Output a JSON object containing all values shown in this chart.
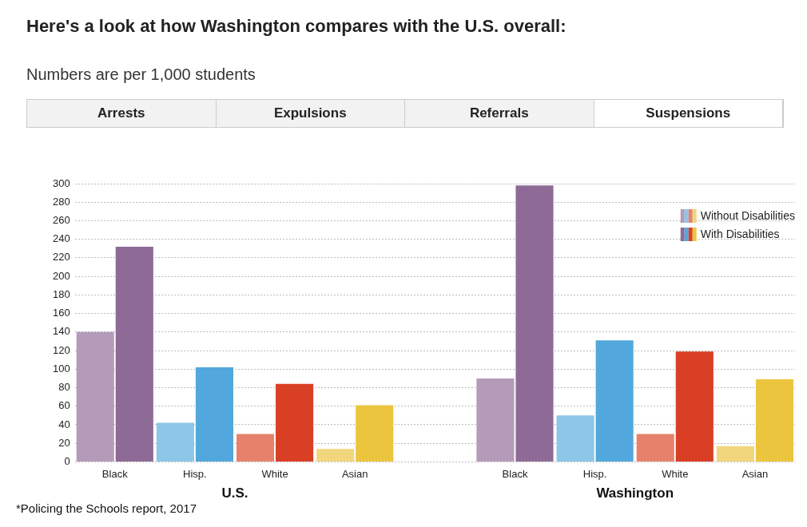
{
  "chart_data": {
    "type": "bar",
    "title": "Here's a look at how Washington compares with the U.S. overall:",
    "subtitle": "Numbers are per 1,000 students",
    "categories": [
      "Black",
      "Hisp.",
      "White",
      "Asian",
      null,
      "Black",
      "Hisp.",
      "White",
      "Asian"
    ],
    "series": [
      {
        "name": "Without Disabilities",
        "colors": [
          "#b49bba",
          "#8cc6e8",
          "#e6826c",
          "#f1d67c",
          null,
          "#b49bba",
          "#8cc6e8",
          "#e6826c",
          "#f1d67c"
        ],
        "values": [
          140,
          42,
          30,
          14,
          null,
          90,
          50,
          30,
          17
        ]
      },
      {
        "name": "With Disabilities",
        "colors": [
          "#8e6a96",
          "#52a8dc",
          "#d93f24",
          "#ecc53f",
          null,
          "#8e6a96",
          "#52a8dc",
          "#d93f24",
          "#ecc53f"
        ],
        "values": [
          232,
          102,
          84,
          61,
          null,
          298,
          131,
          119,
          89
        ]
      }
    ],
    "ylim": [
      0,
      300
    ],
    "yticks": [
      0,
      20,
      40,
      60,
      80,
      100,
      120,
      140,
      160,
      180,
      200,
      220,
      240,
      260,
      280,
      300
    ],
    "grid": "y",
    "legend": "top right",
    "annotations": [
      "U.S.",
      "Washington",
      "Arrests",
      "Expulsions",
      "Referrals",
      "Suspensions",
      "*Policing the Schools report, 2017"
    ]
  }
}
